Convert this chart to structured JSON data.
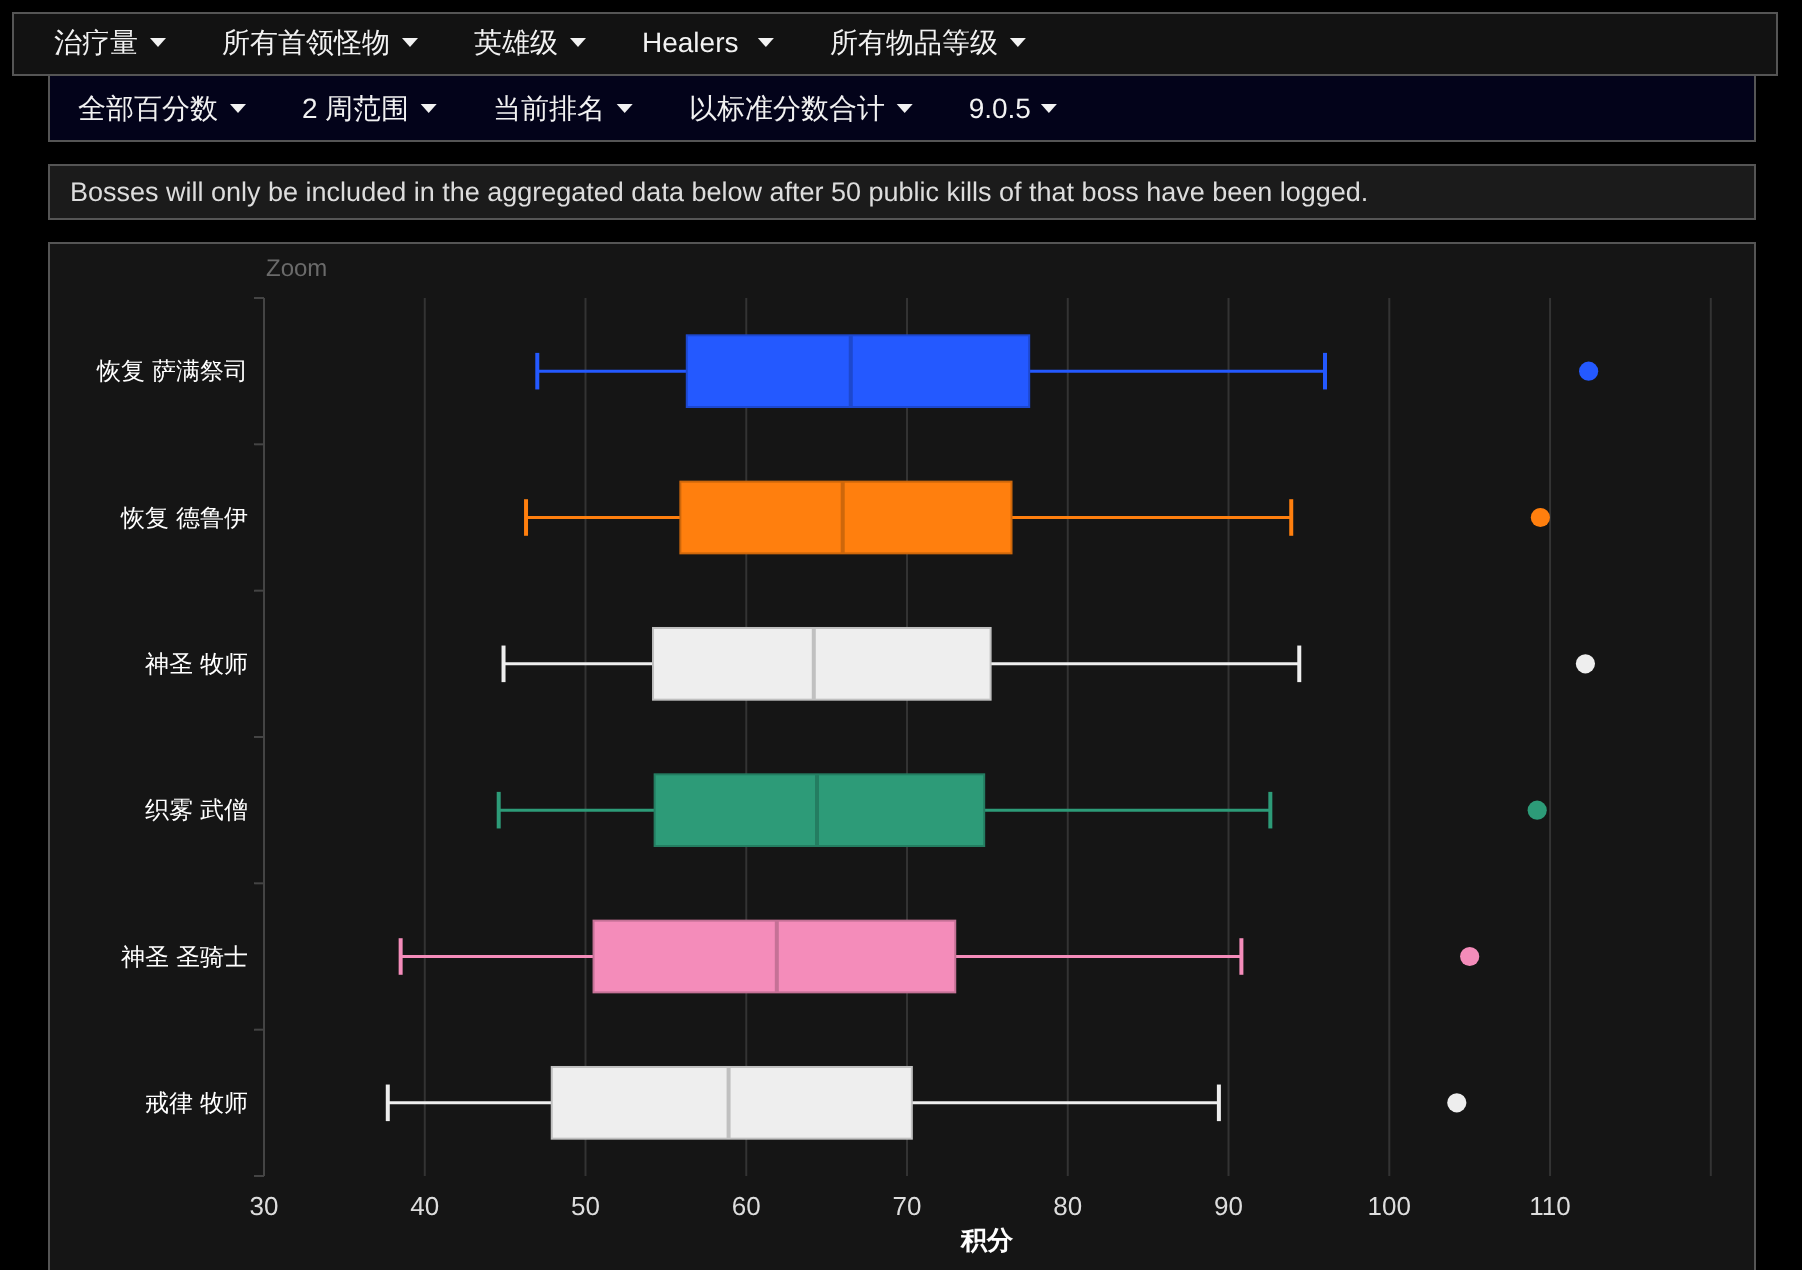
{
  "chart_data": {
    "type": "box",
    "orientation": "horizontal",
    "categories": [
      "恢复 萨满祭司",
      "恢复 德鲁伊",
      "神圣 牧师",
      "织雾 武僧",
      "神圣 圣骑士",
      "戒律 牧师"
    ],
    "boxes": [
      {
        "low": 47.0,
        "q1": 56.3,
        "median": 66.5,
        "q3": 77.6,
        "high": 96.0,
        "outliers": [
          112.4
        ]
      },
      {
        "low": 46.3,
        "q1": 55.9,
        "median": 66.0,
        "q3": 76.5,
        "high": 93.9,
        "outliers": [
          109.4
        ]
      },
      {
        "low": 44.9,
        "q1": 54.2,
        "median": 64.2,
        "q3": 75.2,
        "high": 94.4,
        "outliers": [
          112.2
        ]
      },
      {
        "low": 44.6,
        "q1": 54.3,
        "median": 64.4,
        "q3": 74.8,
        "high": 92.6,
        "outliers": [
          109.2
        ]
      },
      {
        "low": 38.5,
        "q1": 50.5,
        "median": 61.9,
        "q3": 73.0,
        "high": 90.8,
        "outliers": [
          105.0
        ]
      },
      {
        "low": 37.7,
        "q1": 47.9,
        "median": 58.9,
        "q3": 70.3,
        "high": 89.4,
        "outliers": [
          104.2
        ]
      }
    ],
    "colors": [
      "#2459ff",
      "#ff7f0e",
      "#eeeeee",
      "#2d9b78",
      "#f48cba",
      "#eeeeee"
    ],
    "xlim": [
      30,
      120
    ],
    "xticks": [
      30,
      40,
      50,
      60,
      70,
      80,
      90,
      100,
      110,
      {
        "value": 120,
        "label": null
      }
    ],
    "xlabel": "积分",
    "grid": "x",
    "annotations": [
      "治疗量",
      "所有首领怪物",
      "英雄级",
      "Healers",
      "所有物品等级",
      "全部百分数",
      "2 周范围",
      "当前排名",
      "以标准分数合计",
      "9.0.5",
      "Bosses will only be included in the aggregated data below after 50 public kills of that boss have been logged.",
      "Zoom"
    ]
  }
}
